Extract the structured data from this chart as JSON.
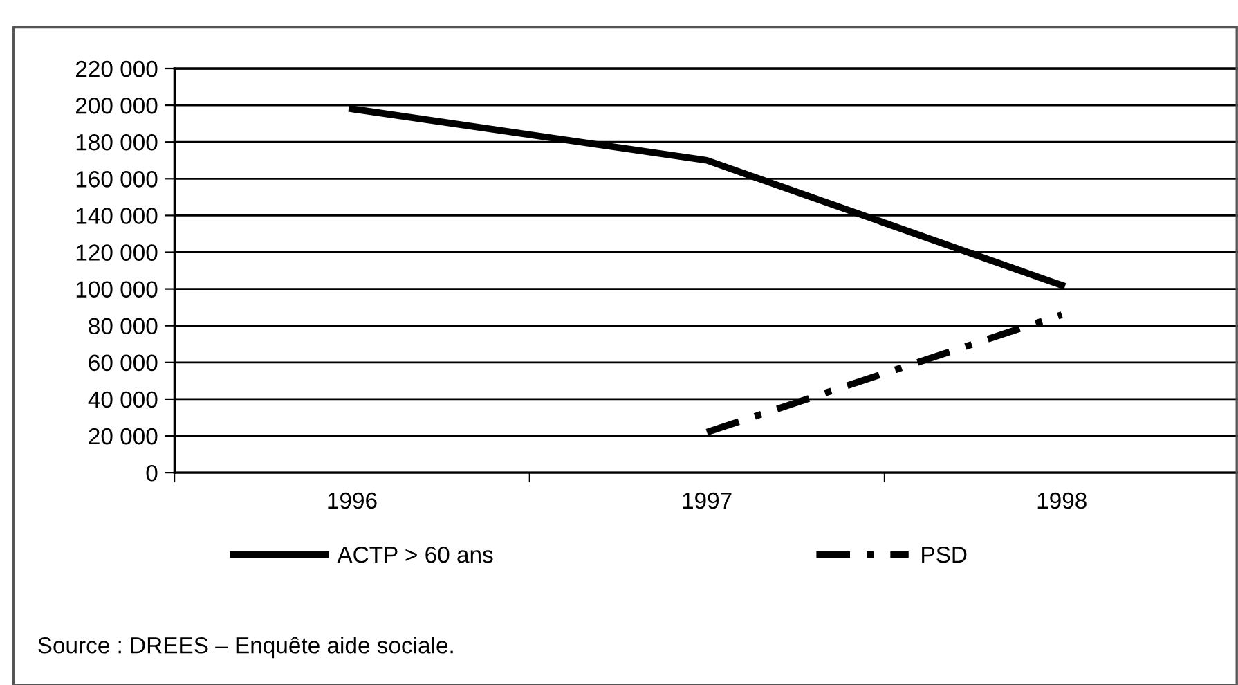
{
  "chart_data": {
    "type": "line",
    "categories": [
      "1996",
      "1997",
      "1998"
    ],
    "series": [
      {
        "name": "ACTP > 60 ans",
        "color": "#000000",
        "values": [
          198000,
          170000,
          102000
        ],
        "line_style": "solid"
      },
      {
        "name": "PSD",
        "color": "#000000",
        "values": [
          null,
          22000,
          86000
        ],
        "line_style": "dashed"
      }
    ],
    "ylim": [
      0,
      220000
    ],
    "yticks": [
      {
        "value": 0,
        "label": "0"
      },
      {
        "value": 20000,
        "label": "20 000"
      },
      {
        "value": 40000,
        "label": "40 000"
      },
      {
        "value": 60000,
        "label": "60 000"
      },
      {
        "value": 80000,
        "label": "80 000"
      },
      {
        "value": 100000,
        "label": "100 000"
      },
      {
        "value": 120000,
        "label": "120 000"
      },
      {
        "value": 140000,
        "label": "140 000"
      },
      {
        "value": 160000,
        "label": "160 000"
      },
      {
        "value": 180000,
        "label": "180 000"
      },
      {
        "value": 200000,
        "label": "200 000"
      },
      {
        "value": 220000,
        "label": "220 000"
      }
    ],
    "grid": "y",
    "legend": "bottom",
    "marker": "none",
    "annotations": [
      "Source : DREES – Enquête aide sociale."
    ]
  }
}
